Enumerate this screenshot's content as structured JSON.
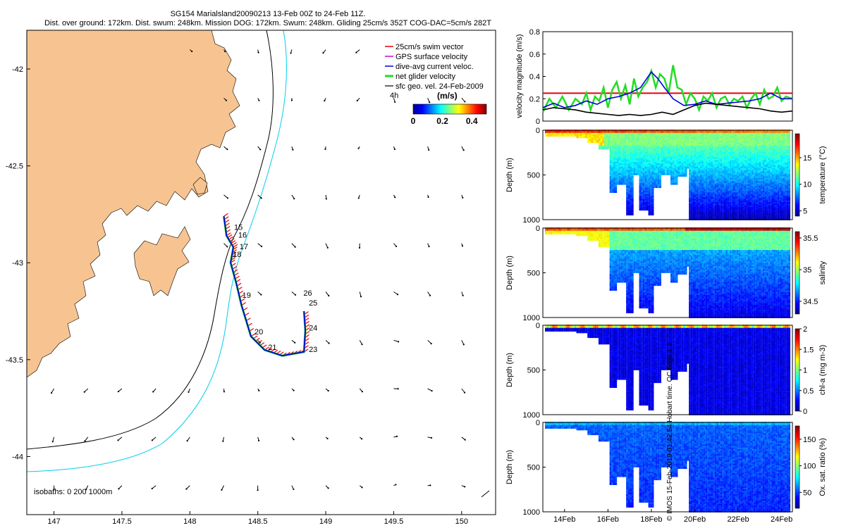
{
  "header": {
    "line1": "SG154 Marialsland20090213 13-Feb 00Z to 24-Feb 11Z.",
    "line2": "Dist. over ground: 172km. Dist. swum: 248km. Mission DOG: 172km. Swum: 248km. Gliding 25cm/s 352T COG-DAC=5cm/s 282T"
  },
  "copyright": "© IMOS 15-Feb-2019 01:42:54 Hobart time. QC flags 1  2",
  "colors": {
    "land": "#f7c491",
    "swim": "#e8000b",
    "gps": "#d000d0",
    "dac": "#0000e0",
    "net": "#22dd22",
    "geo": "#000000",
    "isobath_200": "#000000",
    "isobath_1000": "#00cfe8"
  },
  "chart_data": [
    {
      "type": "map",
      "id": "glider-track-map",
      "x_ticks": [
        "147",
        "147.5",
        "148",
        "148.5",
        "149",
        "149.5",
        "150"
      ],
      "y_ticks": [
        "-42",
        "-42.5",
        "-43",
        "-43.5",
        "-44"
      ],
      "xlim": [
        146.8,
        150.25
      ],
      "ylim": [
        -44.3,
        -41.8
      ],
      "legend": [
        {
          "label": "25cm/s swim vector",
          "color": "#e8000b"
        },
        {
          "label": "GPS surface velocity",
          "color": "#d000d0"
        },
        {
          "label": "dive-avg current veloc.",
          "color": "#0000e0"
        },
        {
          "label": "net glider velocity",
          "color": "#22dd22"
        },
        {
          "label": "sfc geo. vel. 24-Feb-2009",
          "color": "#000000"
        }
      ],
      "colorbar": {
        "label": "(m/s)",
        "ticks": [
          "0",
          "0.2",
          "0.4"
        ],
        "range": [
          0,
          0.5
        ],
        "duration_label": "4h"
      },
      "day_labels": [
        {
          "label": "15",
          "lon": 148.31,
          "lat": -42.83
        },
        {
          "label": "16",
          "lon": 148.34,
          "lat": -42.87
        },
        {
          "label": "17",
          "lon": 148.35,
          "lat": -42.93
        },
        {
          "label": "18",
          "lon": 148.3,
          "lat": -42.97
        },
        {
          "label": "19",
          "lon": 148.37,
          "lat": -43.18
        },
        {
          "label": "20",
          "lon": 148.46,
          "lat": -43.37
        },
        {
          "label": "21",
          "lon": 148.56,
          "lat": -43.45
        },
        {
          "label": "23",
          "lon": 148.86,
          "lat": -43.46
        },
        {
          "label": "24",
          "lon": 148.86,
          "lat": -43.35
        },
        {
          "label": "25",
          "lon": 148.86,
          "lat": -43.22
        },
        {
          "label": "26",
          "lon": 148.82,
          "lat": -43.17
        }
      ],
      "isobath_label": "isobaths: 0   200  1000m"
    },
    {
      "type": "line",
      "id": "velocity-magnitude",
      "ylabel": "velocity magnitude (m/s)",
      "ylim": [
        0,
        0.8
      ],
      "y_ticks": [
        "0",
        "0.2",
        "0.4",
        "0.6",
        "0.8"
      ],
      "xlim": [
        13.0,
        24.5
      ],
      "reference_line": 0.25,
      "series": [
        {
          "name": "net glider velocity",
          "color": "#22dd22",
          "x": [
            13.0,
            13.3,
            13.6,
            13.9,
            14.2,
            14.5,
            14.8,
            15.0,
            15.2,
            15.4,
            15.6,
            15.8,
            16.0,
            16.2,
            16.4,
            16.6,
            16.8,
            17.0,
            17.2,
            17.4,
            17.6,
            17.8,
            18.0,
            18.2,
            18.4,
            18.6,
            18.8,
            19.0,
            19.2,
            19.4,
            19.6,
            19.8,
            20.0,
            20.2,
            20.4,
            20.6,
            20.8,
            21.0,
            21.2,
            21.4,
            21.6,
            21.8,
            22.0,
            22.2,
            22.4,
            22.6,
            22.8,
            23.0,
            23.2,
            23.4,
            23.6,
            23.8,
            24.0,
            24.2,
            24.5
          ],
          "values": [
            0.08,
            0.2,
            0.12,
            0.22,
            0.1,
            0.2,
            0.15,
            0.25,
            0.1,
            0.22,
            0.18,
            0.3,
            0.12,
            0.28,
            0.35,
            0.2,
            0.32,
            0.15,
            0.38,
            0.22,
            0.3,
            0.35,
            0.45,
            0.3,
            0.42,
            0.38,
            0.25,
            0.5,
            0.3,
            0.28,
            0.15,
            0.25,
            0.2,
            0.1,
            0.22,
            0.18,
            0.25,
            0.12,
            0.2,
            0.22,
            0.15,
            0.2,
            0.18,
            0.22,
            0.12,
            0.2,
            0.25,
            0.15,
            0.28,
            0.2,
            0.22,
            0.3,
            0.18,
            0.22,
            0.2
          ]
        },
        {
          "name": "dive-avg current veloc.",
          "color": "#0000e0",
          "x": [
            13.0,
            13.5,
            14.0,
            14.5,
            15.0,
            15.5,
            16.0,
            16.5,
            17.0,
            17.5,
            18.0,
            18.3,
            18.6,
            19.0,
            19.5,
            20.0,
            20.5,
            21.0,
            21.5,
            22.0,
            22.5,
            23.0,
            23.5,
            24.0,
            24.5
          ],
          "values": [
            0.12,
            0.16,
            0.12,
            0.14,
            0.18,
            0.15,
            0.2,
            0.22,
            0.25,
            0.3,
            0.44,
            0.38,
            0.3,
            0.2,
            0.14,
            0.15,
            0.18,
            0.15,
            0.16,
            0.17,
            0.18,
            0.2,
            0.25,
            0.2,
            0.2
          ]
        },
        {
          "name": "sfc geo. vel.",
          "color": "#000000",
          "x": [
            13.0,
            13.5,
            14.0,
            14.5,
            15.0,
            15.5,
            16.0,
            16.5,
            17.0,
            17.5,
            18.0,
            18.5,
            19.0,
            19.5,
            20.0,
            20.5,
            21.0,
            21.5,
            22.0,
            22.5,
            23.0,
            23.5,
            24.0,
            24.5
          ],
          "values": [
            0.1,
            0.12,
            0.11,
            0.1,
            0.08,
            0.07,
            0.06,
            0.05,
            0.06,
            0.05,
            0.06,
            0.08,
            0.06,
            0.1,
            0.14,
            0.16,
            0.15,
            0.14,
            0.13,
            0.12,
            0.11,
            0.09,
            0.08,
            0.09
          ]
        }
      ]
    },
    {
      "type": "heatmap",
      "id": "temperature-section",
      "ylabel": "Depth (m)",
      "ylim": [
        1000,
        0
      ],
      "y_ticks": [
        "0",
        "500",
        "1000"
      ],
      "colorbar_label": "temperature (°C)",
      "colorbar_ticks": [
        "5",
        "10",
        "15"
      ],
      "colorbar_range": [
        4,
        19.5
      ]
    },
    {
      "type": "heatmap",
      "id": "salinity-section",
      "ylabel": "Depth (m)",
      "ylim": [
        1000,
        0
      ],
      "y_ticks": [
        "0",
        "500",
        "1000"
      ],
      "colorbar_label": "salinity",
      "colorbar_ticks": [
        "34.5",
        "35",
        "35.5"
      ],
      "colorbar_range": [
        34.3,
        35.6
      ]
    },
    {
      "type": "heatmap",
      "id": "chla-section",
      "ylabel": "Depth (m)",
      "ylim": [
        1000,
        0
      ],
      "y_ticks": [
        "0",
        "500",
        "1000"
      ],
      "colorbar_label": "chl-a (mg m-3)",
      "colorbar_ticks": [
        "0",
        "0.5",
        "1",
        "1.5",
        "2"
      ],
      "colorbar_range": [
        0,
        2
      ]
    },
    {
      "type": "heatmap",
      "id": "oxygen-section",
      "ylabel": "Depth (m)",
      "ylim": [
        1000,
        0
      ],
      "y_ticks": [
        "0",
        "500",
        "1000"
      ],
      "colorbar_label": "Ox. sat. ratio (%)",
      "colorbar_ticks": [
        "50",
        "100",
        "150"
      ],
      "colorbar_range": [
        20,
        175
      ],
      "x_ticks": [
        "14Feb",
        "16Feb",
        "18Feb",
        "20Feb",
        "22Feb",
        "24Feb"
      ]
    }
  ],
  "profile_depths": [
    {
      "x": 13.0,
      "d": 60
    },
    {
      "x": 14.5,
      "d": 80
    },
    {
      "x": 15.0,
      "d": 140
    },
    {
      "x": 15.5,
      "d": 220
    },
    {
      "x": 16.0,
      "d": 700
    },
    {
      "x": 16.4,
      "d": 600
    },
    {
      "x": 16.8,
      "d": 950
    },
    {
      "x": 17.1,
      "d": 500
    },
    {
      "x": 17.4,
      "d": 900
    },
    {
      "x": 17.8,
      "d": 950
    },
    {
      "x": 18.1,
      "d": 640
    },
    {
      "x": 18.4,
      "d": 500
    },
    {
      "x": 18.8,
      "d": 600
    },
    {
      "x": 19.2,
      "d": 520
    },
    {
      "x": 19.6,
      "d": 420
    },
    {
      "x": 19.7,
      "d": 1000
    },
    {
      "x": 24.5,
      "d": 1000
    }
  ]
}
